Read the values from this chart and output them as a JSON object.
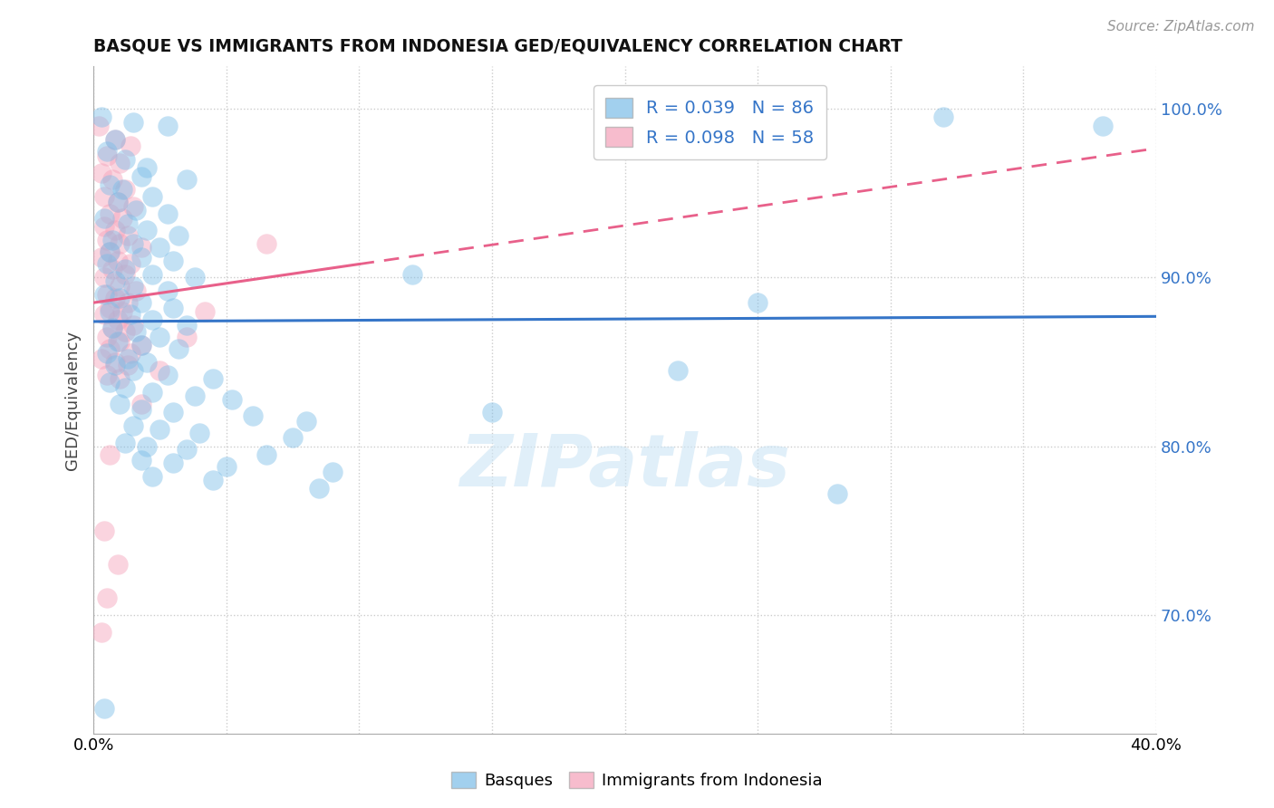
{
  "title": "BASQUE VS IMMIGRANTS FROM INDONESIA GED/EQUIVALENCY CORRELATION CHART",
  "source": "Source: ZipAtlas.com",
  "xmin": 0.0,
  "xmax": 40.0,
  "ymin": 63.0,
  "ymax": 102.5,
  "blue_R": 0.039,
  "blue_N": 86,
  "pink_R": 0.098,
  "pink_N": 58,
  "blue_color": "#7bbde8",
  "pink_color": "#f4a0b8",
  "blue_line_color": "#3575c8",
  "pink_line_color": "#e8608a",
  "tick_color": "#3575c8",
  "legend_label_blue": "Basques",
  "legend_label_pink": "Immigrants from Indonesia",
  "watermark": "ZIPatlas",
  "yticks": [
    70,
    80,
    90,
    100
  ],
  "xticks": [
    0,
    5,
    10,
    15,
    20,
    25,
    30,
    35,
    40
  ],
  "blue_points": [
    [
      0.3,
      99.5
    ],
    [
      1.5,
      99.2
    ],
    [
      2.8,
      99.0
    ],
    [
      0.8,
      98.2
    ],
    [
      0.5,
      97.5
    ],
    [
      1.2,
      97.0
    ],
    [
      2.0,
      96.5
    ],
    [
      1.8,
      96.0
    ],
    [
      3.5,
      95.8
    ],
    [
      0.6,
      95.5
    ],
    [
      1.1,
      95.2
    ],
    [
      2.2,
      94.8
    ],
    [
      0.9,
      94.5
    ],
    [
      1.6,
      94.0
    ],
    [
      2.8,
      93.8
    ],
    [
      0.4,
      93.5
    ],
    [
      1.3,
      93.2
    ],
    [
      2.0,
      92.8
    ],
    [
      3.2,
      92.5
    ],
    [
      0.7,
      92.2
    ],
    [
      1.5,
      92.0
    ],
    [
      2.5,
      91.8
    ],
    [
      0.6,
      91.5
    ],
    [
      1.8,
      91.2
    ],
    [
      3.0,
      91.0
    ],
    [
      0.5,
      90.8
    ],
    [
      1.2,
      90.5
    ],
    [
      2.2,
      90.2
    ],
    [
      3.8,
      90.0
    ],
    [
      0.8,
      89.8
    ],
    [
      1.5,
      89.5
    ],
    [
      2.8,
      89.2
    ],
    [
      0.4,
      89.0
    ],
    [
      1.0,
      88.8
    ],
    [
      1.8,
      88.5
    ],
    [
      3.0,
      88.2
    ],
    [
      0.6,
      88.0
    ],
    [
      1.4,
      87.8
    ],
    [
      2.2,
      87.5
    ],
    [
      3.5,
      87.2
    ],
    [
      0.7,
      87.0
    ],
    [
      1.6,
      86.8
    ],
    [
      2.5,
      86.5
    ],
    [
      0.9,
      86.2
    ],
    [
      1.8,
      86.0
    ],
    [
      3.2,
      85.8
    ],
    [
      0.5,
      85.5
    ],
    [
      1.3,
      85.2
    ],
    [
      2.0,
      85.0
    ],
    [
      0.8,
      84.8
    ],
    [
      1.5,
      84.5
    ],
    [
      2.8,
      84.2
    ],
    [
      4.5,
      84.0
    ],
    [
      0.6,
      83.8
    ],
    [
      1.2,
      83.5
    ],
    [
      2.2,
      83.2
    ],
    [
      3.8,
      83.0
    ],
    [
      5.2,
      82.8
    ],
    [
      1.0,
      82.5
    ],
    [
      1.8,
      82.2
    ],
    [
      3.0,
      82.0
    ],
    [
      6.0,
      81.8
    ],
    [
      8.0,
      81.5
    ],
    [
      1.5,
      81.2
    ],
    [
      2.5,
      81.0
    ],
    [
      4.0,
      80.8
    ],
    [
      7.5,
      80.5
    ],
    [
      1.2,
      80.2
    ],
    [
      2.0,
      80.0
    ],
    [
      3.5,
      79.8
    ],
    [
      6.5,
      79.5
    ],
    [
      1.8,
      79.2
    ],
    [
      3.0,
      79.0
    ],
    [
      5.0,
      78.8
    ],
    [
      9.0,
      78.5
    ],
    [
      2.2,
      78.2
    ],
    [
      4.5,
      78.0
    ],
    [
      8.5,
      77.5
    ],
    [
      15.0,
      82.0
    ],
    [
      12.0,
      90.2
    ],
    [
      25.0,
      88.5
    ],
    [
      32.0,
      99.5
    ],
    [
      38.0,
      99.0
    ],
    [
      28.0,
      77.2
    ],
    [
      22.0,
      84.5
    ],
    [
      0.4,
      64.5
    ]
  ],
  "pink_points": [
    [
      0.2,
      99.0
    ],
    [
      0.8,
      98.2
    ],
    [
      1.4,
      97.8
    ],
    [
      0.5,
      97.2
    ],
    [
      1.0,
      96.8
    ],
    [
      0.3,
      96.2
    ],
    [
      0.7,
      95.8
    ],
    [
      1.2,
      95.2
    ],
    [
      0.4,
      94.8
    ],
    [
      0.9,
      94.5
    ],
    [
      1.5,
      94.2
    ],
    [
      0.6,
      93.8
    ],
    [
      1.1,
      93.5
    ],
    [
      0.4,
      93.0
    ],
    [
      0.8,
      92.8
    ],
    [
      1.3,
      92.5
    ],
    [
      0.5,
      92.2
    ],
    [
      1.0,
      92.0
    ],
    [
      1.8,
      91.8
    ],
    [
      0.6,
      91.5
    ],
    [
      0.3,
      91.2
    ],
    [
      0.9,
      91.0
    ],
    [
      1.4,
      90.8
    ],
    [
      0.7,
      90.5
    ],
    [
      1.2,
      90.2
    ],
    [
      0.4,
      90.0
    ],
    [
      1.0,
      89.5
    ],
    [
      1.6,
      89.2
    ],
    [
      0.5,
      89.0
    ],
    [
      0.8,
      88.8
    ],
    [
      1.3,
      88.5
    ],
    [
      0.6,
      88.2
    ],
    [
      1.1,
      88.0
    ],
    [
      0.4,
      87.8
    ],
    [
      0.9,
      87.5
    ],
    [
      1.5,
      87.2
    ],
    [
      0.7,
      87.0
    ],
    [
      1.2,
      86.8
    ],
    [
      0.5,
      86.5
    ],
    [
      1.0,
      86.2
    ],
    [
      1.8,
      86.0
    ],
    [
      0.6,
      85.8
    ],
    [
      1.4,
      85.5
    ],
    [
      0.3,
      85.2
    ],
    [
      0.8,
      85.0
    ],
    [
      1.3,
      84.8
    ],
    [
      2.5,
      84.5
    ],
    [
      0.5,
      84.2
    ],
    [
      1.0,
      84.0
    ],
    [
      4.2,
      88.0
    ],
    [
      6.5,
      92.0
    ],
    [
      0.4,
      75.0
    ],
    [
      0.6,
      79.5
    ],
    [
      1.8,
      82.5
    ],
    [
      3.5,
      86.5
    ],
    [
      0.9,
      73.0
    ],
    [
      0.5,
      71.0
    ],
    [
      0.3,
      69.0
    ]
  ],
  "pink_solid_xmax": 10.0,
  "grid_color": "#cccccc",
  "spine_color": "#aaaaaa"
}
